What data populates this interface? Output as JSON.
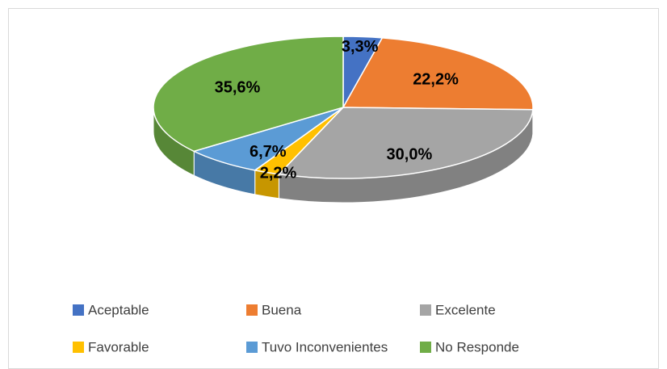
{
  "chart_data": {
    "type": "pie3d",
    "categories": [
      "Aceptable",
      "Buena",
      "Excelente",
      "Favorable",
      "Tuvo Inconvenientes",
      "No Responde"
    ],
    "values": [
      3.3,
      22.2,
      30.0,
      2.2,
      6.7,
      35.6
    ],
    "value_labels": [
      "3,3%",
      "22,2%",
      "30,0%",
      "2,2%",
      "6,7%",
      "35,6%"
    ],
    "colors": [
      "#4472c4",
      "#ed7d31",
      "#a5a5a5",
      "#ffc000",
      "#5b9bd5",
      "#70ad47"
    ],
    "legend": "bottom"
  }
}
